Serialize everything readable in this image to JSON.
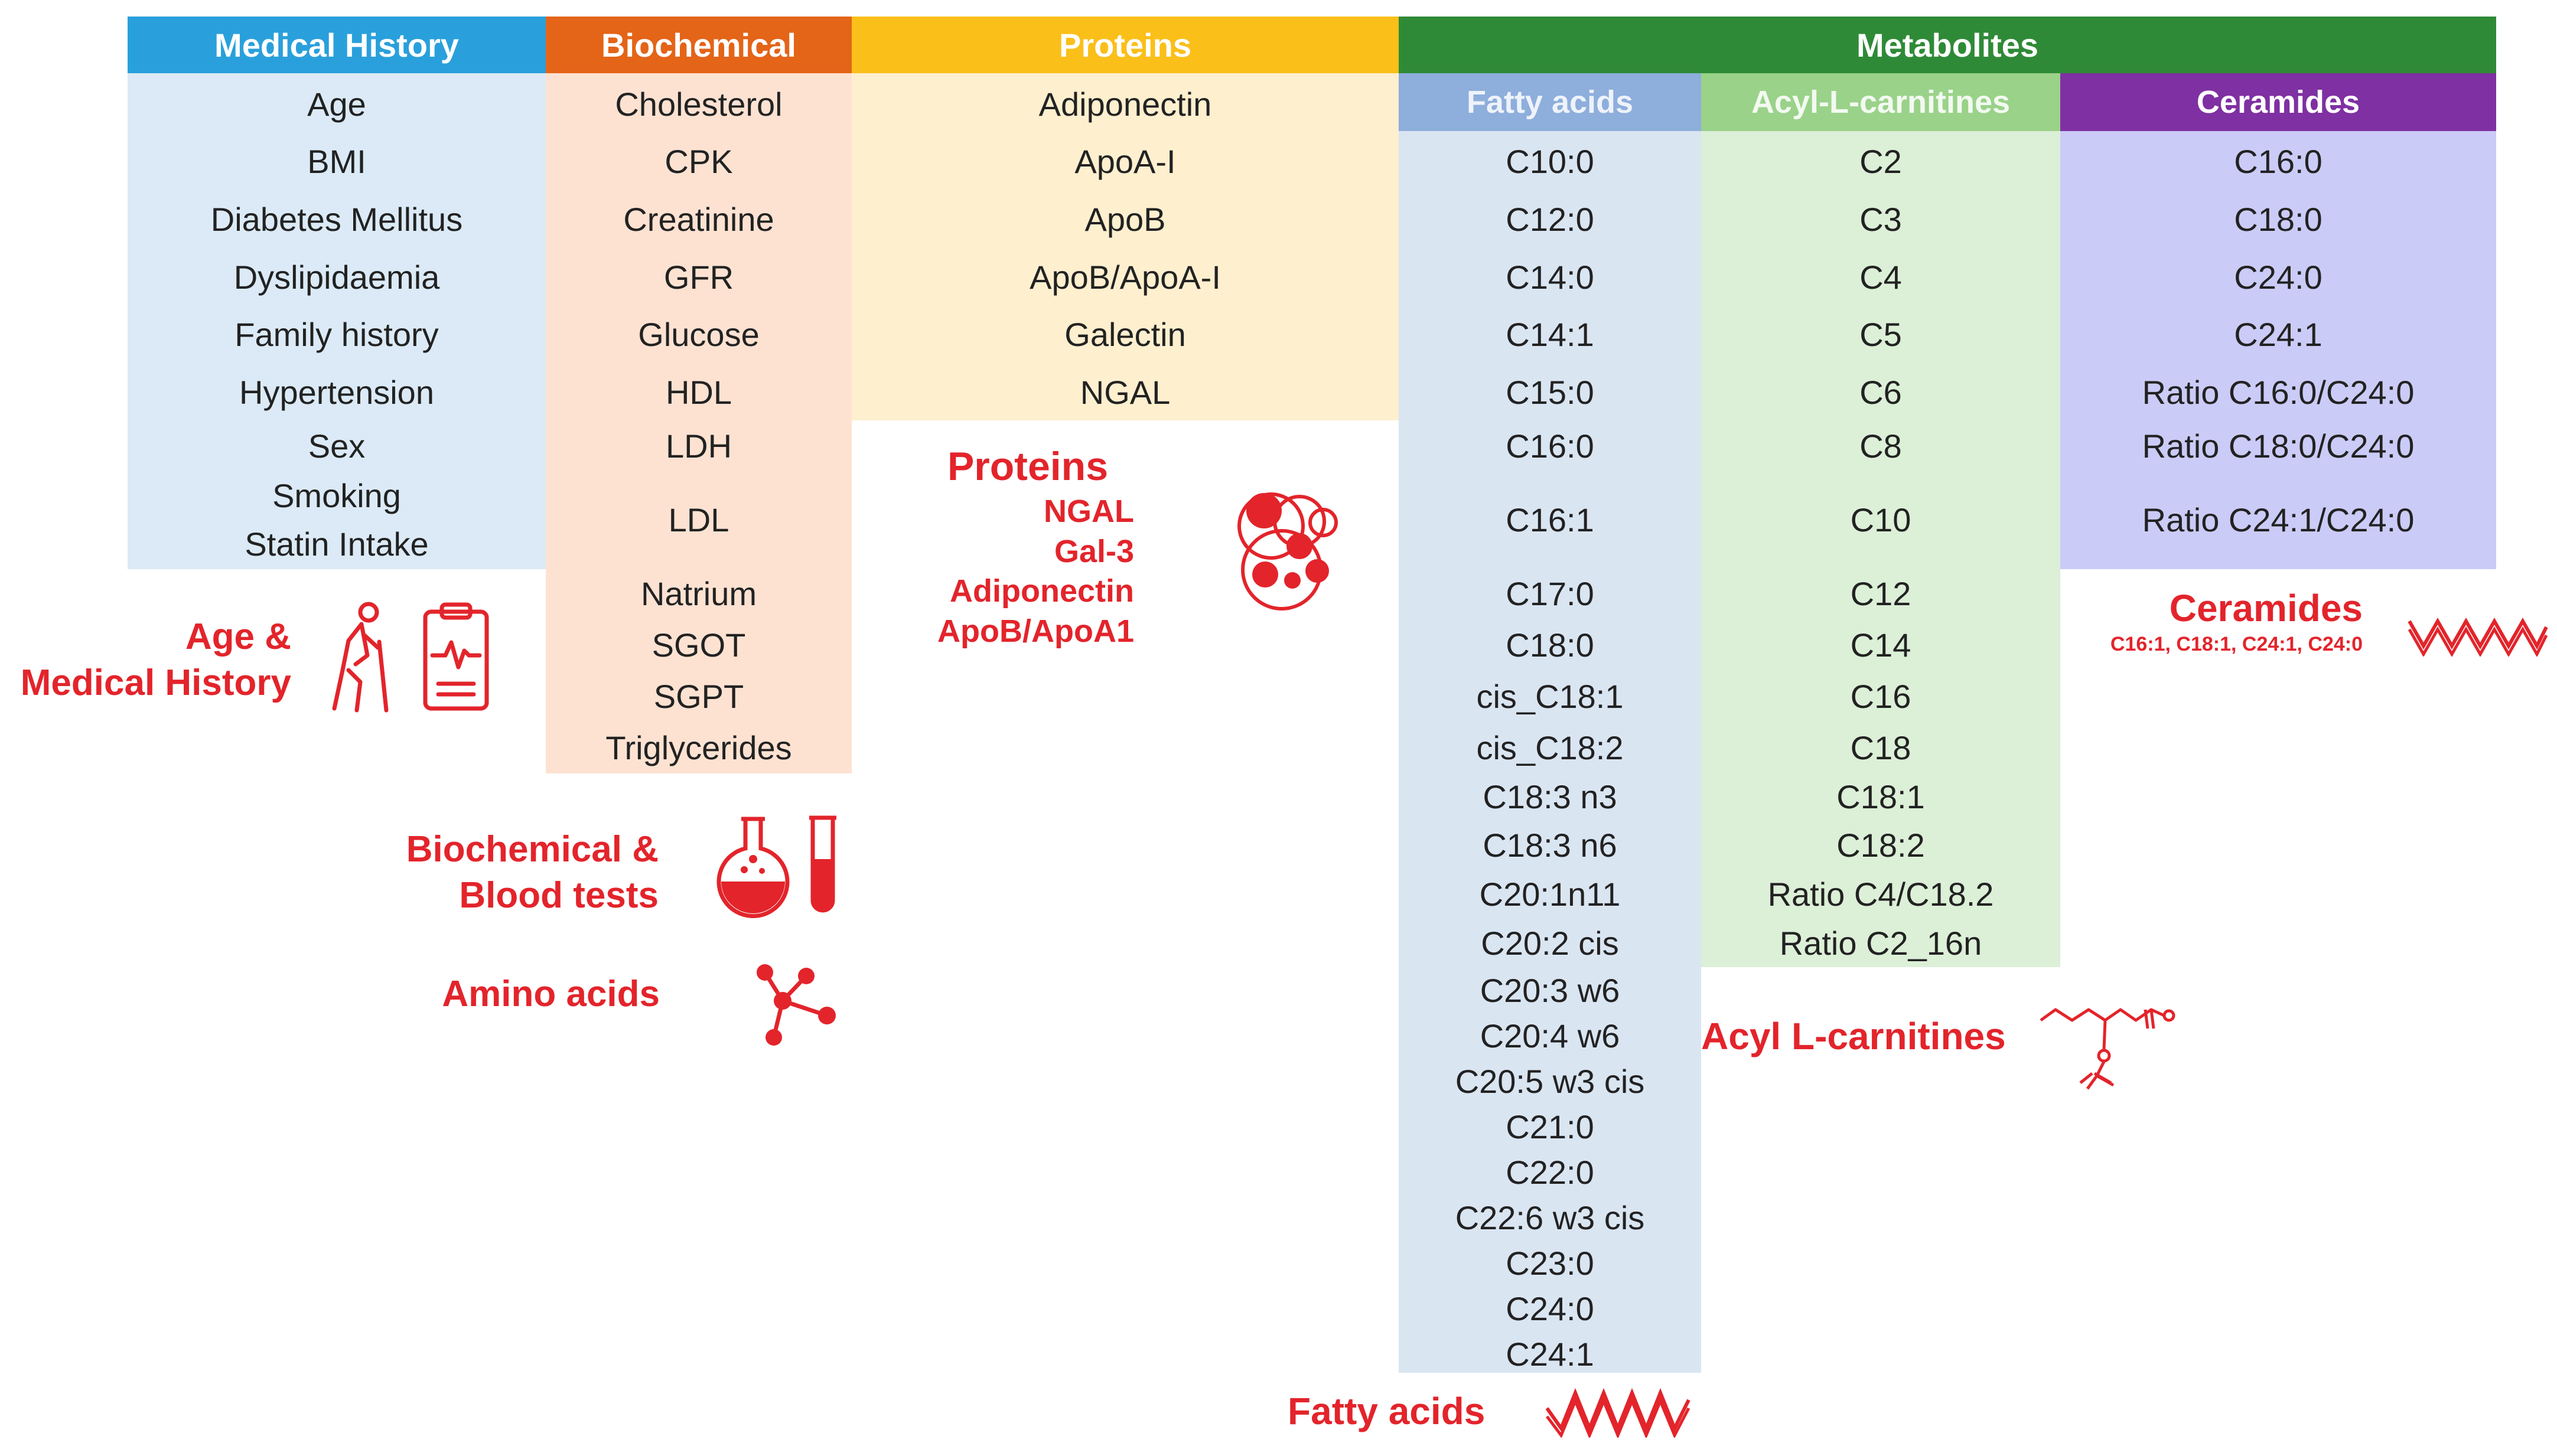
{
  "colors": {
    "medical": "#29a0dc",
    "medical_bg": "#dbeaf6",
    "biochemical": "#e46418",
    "biochemical_bg": "#fde2d2",
    "proteins": "#fbbf1a",
    "proteins_bg": "#feefcf",
    "metabolites": "#2f8a37",
    "fatty": "#8eaedc",
    "fatty_bg": "#dae5f2",
    "acyl": "#9ad28a",
    "acyl_bg": "#dcefd7",
    "ceramides": "#7f30a2",
    "ceramides_bg": "#cbcbf7",
    "accent_red": "#e3242b"
  },
  "headers": {
    "medical": "Medical History",
    "biochemical": "Biochemical",
    "proteins": "Proteins",
    "metabolites": "Metabolites",
    "fatty": "Fatty acids",
    "acyl": "Acyl-L-carnitines",
    "ceramides": "Ceramides"
  },
  "columns": {
    "medical": [
      "Age",
      "BMI",
      "Diabetes Mellitus",
      "Dyslipidaemia",
      "Family history",
      "Hypertension",
      "Sex",
      "Smoking",
      "Statin Intake"
    ],
    "biochemical": [
      "Cholesterol",
      "CPK",
      "Creatinine",
      "GFR",
      "Glucose",
      "HDL",
      "LDH",
      "LDL",
      "Natrium",
      "SGOT",
      "SGPT",
      "Triglycerides"
    ],
    "proteins": [
      "Adiponectin",
      "ApoA-I",
      "ApoB",
      "ApoB/ApoA-I",
      "Galectin",
      "NGAL"
    ],
    "fatty": [
      "C10:0",
      "C12:0",
      "C14:0",
      "C14:1",
      "C15:0",
      "C16:0",
      "C16:1",
      "C17:0",
      "C18:0",
      "cis_C18:1",
      "cis_C18:2",
      "C18:3 n3",
      "C18:3 n6",
      "C20:1n11",
      "C20:2 cis",
      "C20:3 w6",
      "C20:4 w6",
      "C20:5 w3 cis",
      "C21:0",
      "C22:0",
      "C22:6 w3 cis",
      "C23:0",
      "C24:0",
      "C24:1"
    ],
    "acyl": [
      "C2",
      "C3",
      "C4",
      "C5",
      "C6",
      "C8",
      "C10",
      "C12",
      "C14",
      "C16",
      "C18",
      "C18:1",
      "C18:2",
      "Ratio C4/C18.2",
      "Ratio C2_16n"
    ],
    "ceramides": [
      "C16:0",
      "C18:0",
      "C24:0",
      "C24:1",
      "Ratio C16:0/C24:0",
      "Ratio C18:0/C24:0",
      "Ratio C24:1/C24:0"
    ]
  },
  "labels": {
    "medical_line1": "Age &",
    "medical_line2": "Medical History",
    "biochem_line1": "Biochemical &",
    "biochem_line2": "Blood tests",
    "amino": "Amino acids",
    "proteins_title": "Proteins",
    "proteins_items": [
      "NGAL",
      "Gal-3",
      "Adiponectin",
      "ApoB/ApoA1"
    ],
    "ceramides_title": "Ceramides",
    "ceramides_sub": "C16:1, C18:1, C24:1, C24:0",
    "acyl": "Acyl L-carnitines",
    "fatty": "Fatty acids"
  },
  "icons": [
    "elderly-person-icon",
    "clipboard-ecg-icon",
    "flask-icon",
    "test-tube-icon",
    "molecule-icon",
    "protein-cluster-icon",
    "zigzag-chain-icon",
    "carnitine-structure-icon"
  ]
}
